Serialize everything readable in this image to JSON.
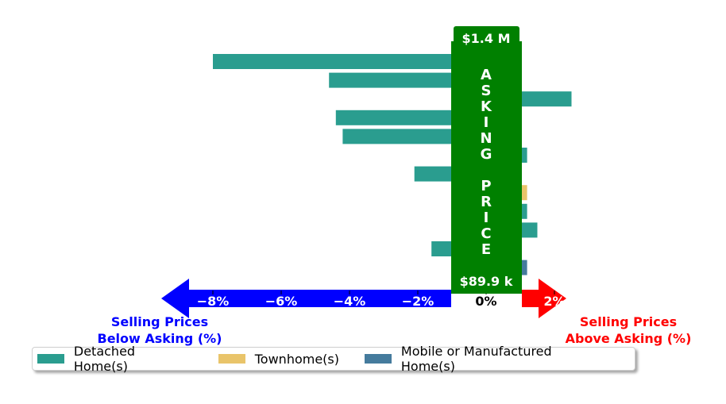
{
  "chart_data": {
    "type": "bar",
    "orientation": "horizontal",
    "x_unit": "%",
    "xlim": [
      -10.2,
      2.3
    ],
    "x_ticks": [
      {
        "value": -8,
        "label": "−8%"
      },
      {
        "value": -6,
        "label": "−6%"
      },
      {
        "value": -4,
        "label": "−4%"
      },
      {
        "value": -2,
        "label": "−2%"
      },
      {
        "value": 0,
        "label": "0%"
      },
      {
        "value": 2,
        "label": "2%"
      }
    ],
    "series": [
      {
        "name": "Detached Home(s)",
        "color": "#2a9d8f"
      },
      {
        "name": "Townhome(s)",
        "color": "#e9c46a"
      },
      {
        "name": "Mobile or Manufactured Home(s)",
        "color": "#457b9d"
      }
    ],
    "bars": [
      {
        "series": 0,
        "value": -8.0
      },
      {
        "series": 0,
        "value": -4.6
      },
      {
        "series": 0,
        "value": 2.5
      },
      {
        "series": 0,
        "value": -4.4
      },
      {
        "series": 0,
        "value": -4.2
      },
      {
        "series": 0,
        "value": 1.2
      },
      {
        "series": 0,
        "value": -2.1
      },
      {
        "series": 1,
        "value": 1.2
      },
      {
        "series": 0,
        "value": 1.2
      },
      {
        "series": 0,
        "value": 1.5
      },
      {
        "series": 0,
        "value": -1.6
      },
      {
        "series": 2,
        "value": 1.2
      }
    ],
    "asking_price": {
      "top_label": "$1.4 M",
      "bottom_label": "$89.9 k",
      "text": "ASKING PRICE",
      "color": "#008000"
    },
    "left_label": [
      "Selling Prices",
      "Below Asking (%)"
    ],
    "right_label": [
      "Selling Prices",
      "Above Asking (%)"
    ],
    "left_color": "#0000ff",
    "right_color": "#ff0000",
    "legend_position": "bottom"
  }
}
